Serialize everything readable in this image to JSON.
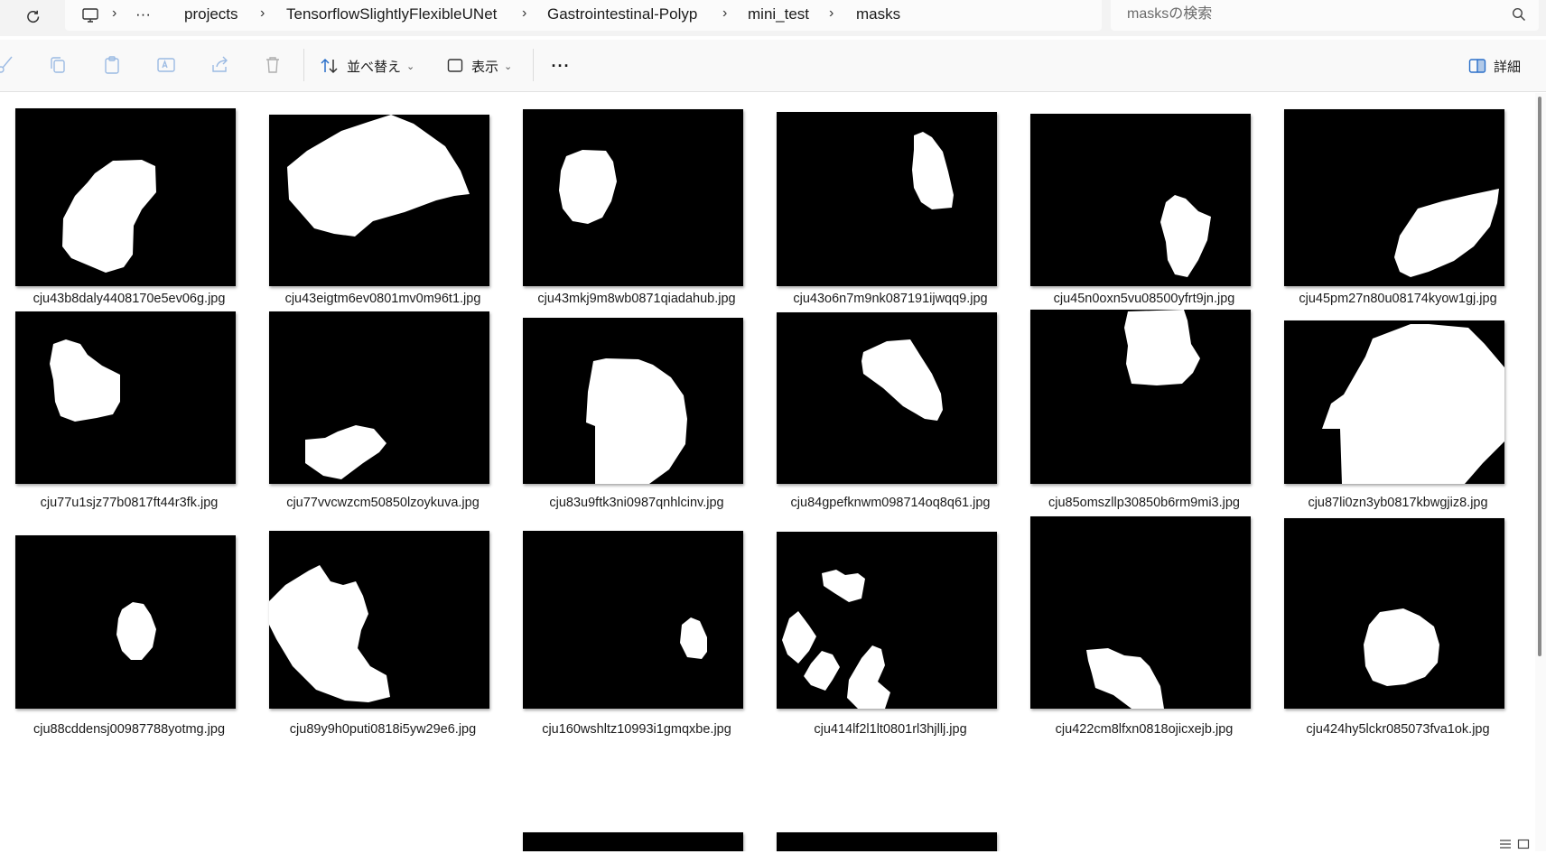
{
  "breadcrumb": {
    "items": [
      "projects",
      "TensorflowSlightlyFlexibleUNet",
      "Gastrointestinal-Polyp",
      "mini_test",
      "masks"
    ],
    "overflow": "···"
  },
  "search": {
    "placeholder": "masksの検索"
  },
  "toolbar": {
    "sort_label": "並べ替え",
    "view_label": "表示",
    "more_label": "···",
    "details_label": "詳細"
  },
  "files": [
    {
      "name": "cju43b8daly4408170e5ev06g.jpg"
    },
    {
      "name": "cju43eigtm6ev0801mv0m96t1.jpg"
    },
    {
      "name": "cju43mkj9m8wb0871qiadahub.jpg"
    },
    {
      "name": "cju43o6n7m9nk087191ijwqq9.jpg"
    },
    {
      "name": "cju45n0oxn5vu08500yfrt9jn.jpg"
    },
    {
      "name": "cju45pm27n80u08174kyow1gj.jpg"
    },
    {
      "name": "cju77u1sjz77b0817ft44r3fk.jpg"
    },
    {
      "name": "cju77vvcwzcm50850lzoykuva.jpg"
    },
    {
      "name": "cju83u9ftk3ni0987qnhlcinv.jpg"
    },
    {
      "name": "cju84gpefknwm098714oq8q61.jpg"
    },
    {
      "name": "cju85omszllp30850b6rm9mi3.jpg"
    },
    {
      "name": "cju87li0zn3yb0817kbwgjiz8.jpg"
    },
    {
      "name": "cju88cddensj00987788yotmg.jpg"
    },
    {
      "name": "cju89y9h0puti0818i5yw29e6.jpg"
    },
    {
      "name": "cju160wshltz10993i1gmqxbe.jpg"
    },
    {
      "name": "cju414lf2l1lt0801rl3hjllj.jpg"
    },
    {
      "name": "cju422cm8lfxn0818ojicxejb.jpg"
    },
    {
      "name": "cju424hy5lckr085073fva1ok.jpg"
    }
  ],
  "colors": {
    "accent": "#0067c0",
    "thumb_bg": "#000000",
    "mask_fg": "#ffffff"
  }
}
